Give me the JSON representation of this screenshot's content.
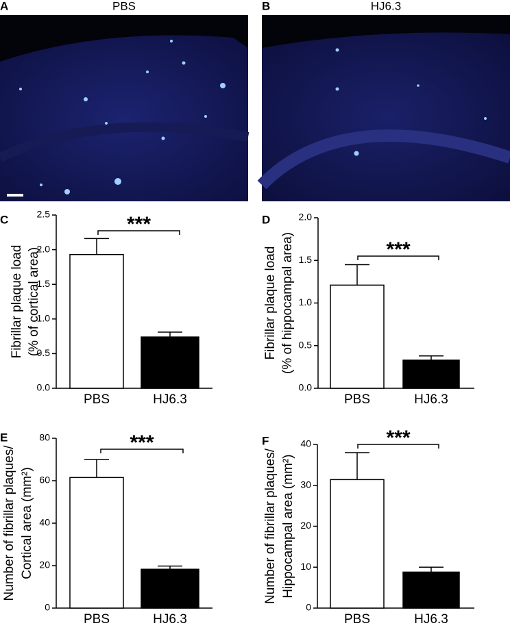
{
  "panels": [
    {
      "letter": "A",
      "title": "PBS"
    },
    {
      "letter": "B",
      "title": "HJ6.3"
    }
  ],
  "chart_data": [
    {
      "type": "bar",
      "letter": "C",
      "ylabel": [
        "Fibrillar plaque load",
        "(% of cortical area)"
      ],
      "annotation": "***",
      "categories": [
        "PBS",
        "HJ6.3"
      ],
      "values": [
        1.93,
        0.74
      ],
      "errors": [
        0.23,
        0.07
      ],
      "colors": [
        "#ffffff",
        "#000000"
      ],
      "ylim": [
        0,
        2.5
      ],
      "yticks": [
        {
          "value": 0,
          "label": "0.0"
        },
        0.5,
        {
          "value": 1,
          "label": "1.0"
        },
        1.5,
        {
          "value": 2,
          "label": "2.0"
        },
        2.5
      ]
    },
    {
      "type": "bar",
      "letter": "D",
      "ylabel": [
        "Fibrillar plaque load",
        "(% of hippocampal area)"
      ],
      "annotation": "***",
      "categories": [
        "PBS",
        "HJ6.3"
      ],
      "values": [
        1.21,
        0.33
      ],
      "errors": [
        0.24,
        0.05
      ],
      "colors": [
        "#ffffff",
        "#000000"
      ],
      "ylim": [
        0,
        2
      ],
      "yticks": [
        {
          "value": 0,
          "label": "0.0"
        },
        0.5,
        {
          "value": 1,
          "label": "1.0"
        },
        1.5,
        {
          "value": 2,
          "label": "2.0"
        }
      ]
    },
    {
      "type": "bar",
      "letter": "E",
      "ylabel": [
        "Number of fibrillar plaques/",
        "Cortical area (mm²)"
      ],
      "annotation": "***",
      "categories": [
        "PBS",
        "HJ6.3"
      ],
      "values": [
        61.5,
        18.3
      ],
      "errors": [
        8.5,
        1.5
      ],
      "colors": [
        "#ffffff",
        "#000000"
      ],
      "ylim": [
        0,
        80
      ],
      "yticks": [
        0,
        20,
        40,
        60,
        80
      ]
    },
    {
      "type": "bar",
      "letter": "F",
      "ylabel": [
        "Number of fibrillar plaques/",
        "Hippocampal area (mm²)"
      ],
      "annotation": "***",
      "categories": [
        "PBS",
        "HJ6.3"
      ],
      "values": [
        31.4,
        8.8
      ],
      "errors": [
        6.6,
        1.2
      ],
      "colors": [
        "#ffffff",
        "#000000"
      ],
      "ylim": [
        0,
        40
      ],
      "yticks": [
        0,
        10,
        20,
        30,
        40
      ]
    }
  ]
}
